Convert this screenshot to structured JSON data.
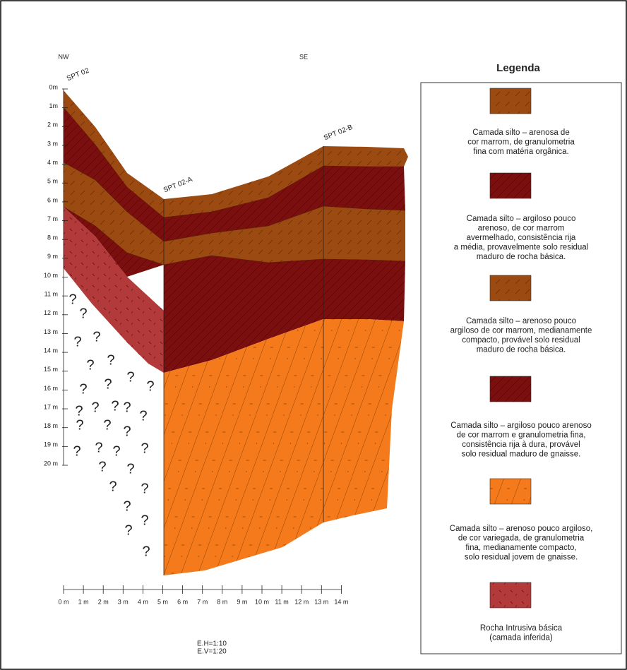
{
  "labels": {
    "nw": "NW",
    "se": "SE"
  },
  "boreholes": [
    "SPT 02",
    "SPT 02-A",
    "SPT 02-B"
  ],
  "depth_ticks": [
    "0m",
    "1m",
    "2 m",
    "3 m",
    "4 m",
    "5 m",
    "6 m",
    "7 m",
    "8 m",
    "9 m",
    "10 m",
    "11 m",
    "12 m",
    "13 m",
    "14 m",
    "15 m",
    "16 m",
    "17 m",
    "18 m",
    "19 m",
    "20 m"
  ],
  "distance_ticks": [
    "0 m",
    "1 m",
    "2 m",
    "3 m",
    "4 m",
    "5 m",
    "6 m",
    "7 m",
    "8 m",
    "9 m",
    "10 m",
    "11 m",
    "12 m",
    "13 m",
    "14 m"
  ],
  "unknown_marker": "?",
  "legend": {
    "title": "Legenda",
    "items": [
      {
        "lines": [
          "Camada silto – arenosa de",
          "cor marrom, de granulometria",
          "fina com matéria orgânica."
        ]
      },
      {
        "lines": [
          "Camada silto – argiloso pouco",
          "arenoso, de cor marrom",
          "avermelhado, consistência rija",
          "a média, provavelmente solo residual",
          "maduro de rocha básica."
        ]
      },
      {
        "lines": [
          "Camada silto – arenoso pouco",
          "argiloso de cor marrom, medianamente",
          "compacto, provável solo residual",
          "maduro de rocha básica."
        ]
      },
      {
        "lines": [
          "Camada silto – argiloso pouco arenoso",
          "de cor marrom e granulometria fina,",
          "consistência rija à dura, provável",
          "solo residual maduro de gnaisse."
        ]
      },
      {
        "lines": [
          "Camada silto – arenoso pouco argiloso,",
          "de cor variegada, de granulometria",
          "fina, medianamente compacto,",
          "solo residual jovem de gnaisse."
        ]
      },
      {
        "lines": [
          "Rocha Intrusiva básica",
          "(camada inferida)"
        ]
      }
    ]
  },
  "scales": [
    "E.H=1:10",
    "E.V=1:20"
  ]
}
